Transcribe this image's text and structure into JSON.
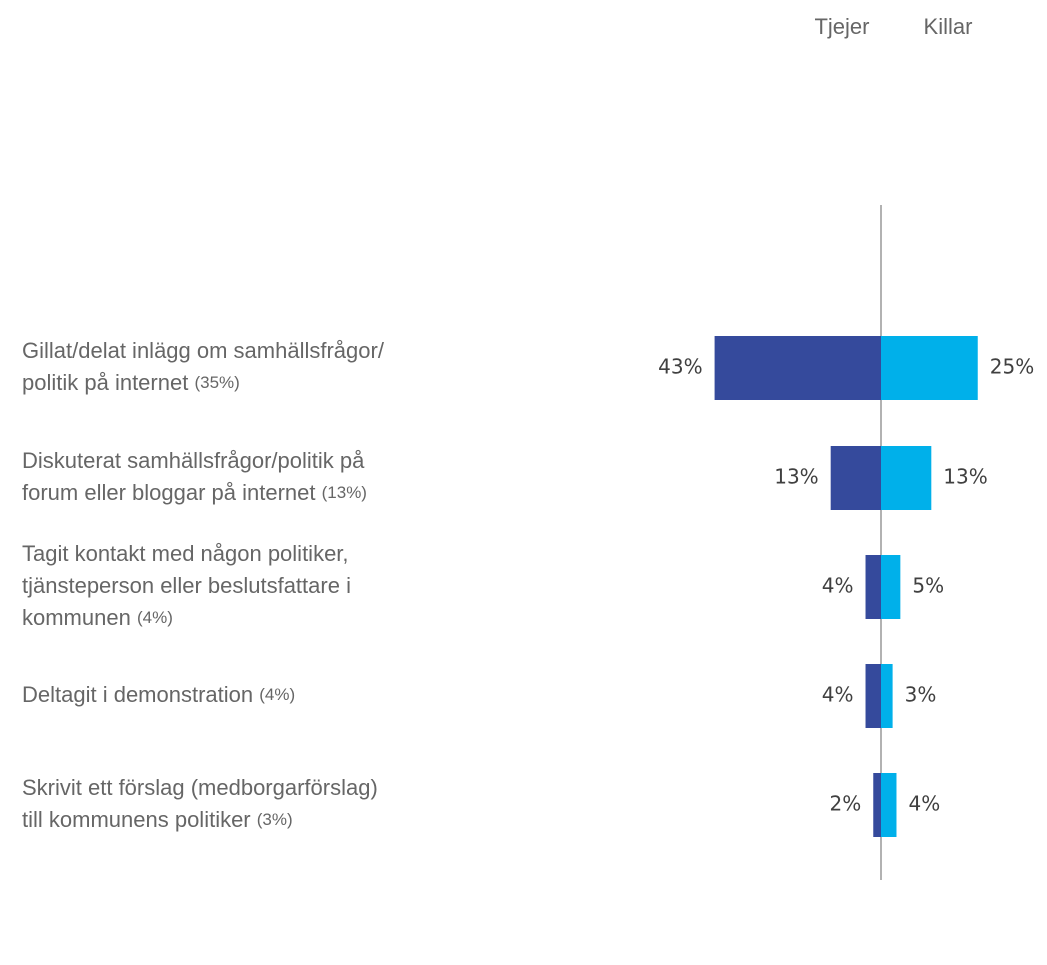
{
  "chart_data": {
    "type": "butterfly",
    "categories": [
      [
        "Gillat/delat inlägg om samhällsfrågor/",
        "politik på internet"
      ],
      [
        "Diskuterat samhällsfrågor/politik på",
        "forum eller bloggar på internet"
      ],
      [
        "Tagit kontakt med någon politiker,",
        "tjänsteperson eller beslutsfattare i",
        "kommunen"
      ],
      [
        "Deltagit i demonstration"
      ],
      [
        "Skrivit ett förslag (medborgarförslag)",
        "till kommunens politiker"
      ]
    ],
    "category_totals": [
      "(35%)",
      "(13%)",
      "(4%)",
      "(4%)",
      "(3%)"
    ],
    "series": [
      {
        "name": "Tjejer",
        "color": "#354a9c",
        "values": [
          43,
          13,
          4,
          4,
          2
        ],
        "value_labels": [
          "43%",
          "13%",
          "4%",
          "4%",
          "2%"
        ]
      },
      {
        "name": "Killar",
        "color": "#00b0ea",
        "values": [
          25,
          13,
          5,
          3,
          4
        ],
        "value_labels": [
          "25%",
          "13%",
          "5%",
          "3%",
          "4%"
        ]
      }
    ]
  }
}
